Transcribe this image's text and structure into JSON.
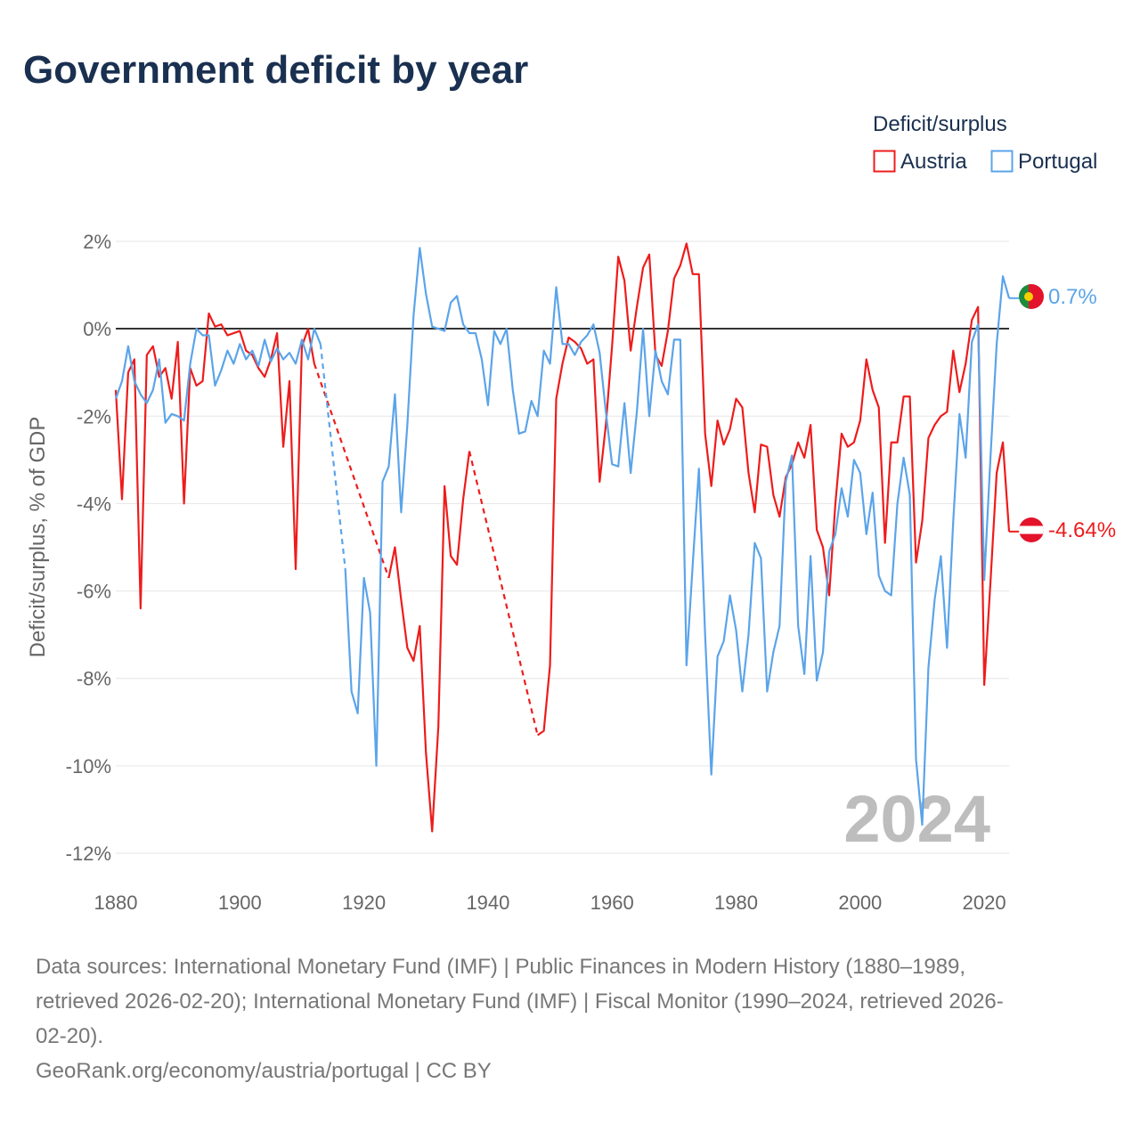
{
  "chart_data": {
    "type": "line",
    "title": "Government deficit by year",
    "ylabel": "Deficit/surplus, % of GDP",
    "xlabel": "",
    "xlim": [
      1880,
      2024
    ],
    "ylim": [
      -12,
      2
    ],
    "x_ticks": [
      1880,
      1900,
      1920,
      1940,
      1960,
      1980,
      2000,
      2020
    ],
    "x_tick_labels": [
      "1880",
      "1900",
      "1920",
      "1940",
      "1960",
      "1980",
      "2000",
      "2020"
    ],
    "y_ticks": [
      2,
      0,
      -2,
      -4,
      -6,
      -8,
      -10,
      -12
    ],
    "y_tick_labels": [
      "2%",
      "0%",
      "-2%",
      "-4%",
      "-6%",
      "-8%",
      "-10%",
      "-12%"
    ],
    "grid": true,
    "legend_title": "Deficit/surplus",
    "legend_position": "top-right",
    "year_watermark": "2024",
    "series": [
      {
        "name": "Austria",
        "color": "#ee1c1c",
        "end_label": "-4.64%",
        "points": [
          [
            1880,
            -1.4
          ],
          [
            1881,
            -3.9
          ],
          [
            1882,
            -1.0
          ],
          [
            1883,
            -0.7
          ],
          [
            1884,
            -6.4
          ],
          [
            1885,
            -0.6
          ],
          [
            1886,
            -0.4
          ],
          [
            1887,
            -1.1
          ],
          [
            1888,
            -0.9
          ],
          [
            1889,
            -1.6
          ],
          [
            1890,
            -0.3
          ],
          [
            1891,
            -4.0
          ],
          [
            1892,
            -0.9
          ],
          [
            1893,
            -1.3
          ],
          [
            1894,
            -1.2
          ],
          [
            1895,
            0.35
          ],
          [
            1896,
            0.05
          ],
          [
            1897,
            0.1
          ],
          [
            1898,
            -0.15
          ],
          [
            1899,
            -0.1
          ],
          [
            1900,
            -0.05
          ],
          [
            1901,
            -0.5
          ],
          [
            1902,
            -0.6
          ],
          [
            1903,
            -0.9
          ],
          [
            1904,
            -1.1
          ],
          [
            1905,
            -0.7
          ],
          [
            1906,
            -0.1
          ],
          [
            1907,
            -2.7
          ],
          [
            1908,
            -1.2
          ],
          [
            1909,
            -5.5
          ],
          [
            1910,
            -0.4
          ],
          [
            1911,
            0.0
          ],
          [
            1912,
            -0.8
          ],
          [
            1924,
            -5.7
          ],
          [
            1925,
            -5.0
          ],
          [
            1926,
            -6.2
          ],
          [
            1927,
            -7.3
          ],
          [
            1928,
            -7.6
          ],
          [
            1929,
            -6.8
          ],
          [
            1930,
            -9.7
          ],
          [
            1931,
            -11.5
          ],
          [
            1932,
            -9.1
          ],
          [
            1933,
            -3.6
          ],
          [
            1934,
            -5.2
          ],
          [
            1935,
            -5.4
          ],
          [
            1936,
            -3.9
          ],
          [
            1937,
            -2.8
          ],
          [
            1948,
            -9.3
          ],
          [
            1949,
            -9.2
          ],
          [
            1950,
            -7.7
          ],
          [
            1951,
            -1.6
          ],
          [
            1952,
            -0.8
          ],
          [
            1953,
            -0.2
          ],
          [
            1954,
            -0.3
          ],
          [
            1955,
            -0.45
          ],
          [
            1956,
            -0.8
          ],
          [
            1957,
            -0.7
          ],
          [
            1958,
            -3.5
          ],
          [
            1959,
            -2.2
          ],
          [
            1960,
            -0.4
          ],
          [
            1961,
            1.65
          ],
          [
            1962,
            1.1
          ],
          [
            1963,
            -0.5
          ],
          [
            1964,
            0.5
          ],
          [
            1965,
            1.4
          ],
          [
            1966,
            1.7
          ],
          [
            1967,
            -0.6
          ],
          [
            1968,
            -0.85
          ],
          [
            1969,
            -0.05
          ],
          [
            1970,
            1.15
          ],
          [
            1971,
            1.45
          ],
          [
            1972,
            1.95
          ],
          [
            1973,
            1.25
          ],
          [
            1974,
            1.25
          ],
          [
            1975,
            -2.4
          ],
          [
            1976,
            -3.6
          ],
          [
            1977,
            -2.1
          ],
          [
            1978,
            -2.65
          ],
          [
            1979,
            -2.3
          ],
          [
            1980,
            -1.6
          ],
          [
            1981,
            -1.8
          ],
          [
            1982,
            -3.3
          ],
          [
            1983,
            -4.2
          ],
          [
            1984,
            -2.65
          ],
          [
            1985,
            -2.7
          ],
          [
            1986,
            -3.8
          ],
          [
            1987,
            -4.3
          ],
          [
            1988,
            -3.4
          ],
          [
            1989,
            -3.1
          ],
          [
            1990,
            -2.6
          ],
          [
            1991,
            -2.95
          ],
          [
            1992,
            -2.2
          ],
          [
            1993,
            -4.6
          ],
          [
            1994,
            -5.0
          ],
          [
            1995,
            -6.1
          ],
          [
            1996,
            -4.0
          ],
          [
            1997,
            -2.4
          ],
          [
            1998,
            -2.7
          ],
          [
            1999,
            -2.6
          ],
          [
            2000,
            -2.1
          ],
          [
            2001,
            -0.7
          ],
          [
            2002,
            -1.4
          ],
          [
            2003,
            -1.8
          ],
          [
            2004,
            -4.9
          ],
          [
            2005,
            -2.6
          ],
          [
            2006,
            -2.6
          ],
          [
            2007,
            -1.55
          ],
          [
            2008,
            -1.55
          ],
          [
            2009,
            -5.35
          ],
          [
            2010,
            -4.4
          ],
          [
            2011,
            -2.5
          ],
          [
            2012,
            -2.2
          ],
          [
            2013,
            -2.0
          ],
          [
            2014,
            -1.9
          ],
          [
            2015,
            -0.5
          ],
          [
            2016,
            -1.45
          ],
          [
            2017,
            -0.8
          ],
          [
            2018,
            0.2
          ],
          [
            2019,
            0.5
          ],
          [
            2020,
            -8.15
          ],
          [
            2021,
            -5.8
          ],
          [
            2022,
            -3.3
          ],
          [
            2023,
            -2.6
          ],
          [
            2024,
            -4.64
          ]
        ]
      },
      {
        "name": "Portugal",
        "color": "#5ba4ea",
        "end_label": "0.7%",
        "points": [
          [
            1880,
            -1.6
          ],
          [
            1881,
            -1.2
          ],
          [
            1882,
            -0.4
          ],
          [
            1883,
            -1.2
          ],
          [
            1884,
            -1.5
          ],
          [
            1885,
            -1.7
          ],
          [
            1886,
            -1.4
          ],
          [
            1887,
            -0.7
          ],
          [
            1888,
            -2.15
          ],
          [
            1889,
            -1.95
          ],
          [
            1890,
            -2.0
          ],
          [
            1891,
            -2.1
          ],
          [
            1892,
            -0.8
          ],
          [
            1893,
            0.0
          ],
          [
            1894,
            -0.15
          ],
          [
            1895,
            -0.15
          ],
          [
            1896,
            -1.3
          ],
          [
            1897,
            -0.95
          ],
          [
            1898,
            -0.5
          ],
          [
            1899,
            -0.8
          ],
          [
            1900,
            -0.35
          ],
          [
            1901,
            -0.7
          ],
          [
            1902,
            -0.5
          ],
          [
            1903,
            -0.85
          ],
          [
            1904,
            -0.25
          ],
          [
            1905,
            -0.75
          ],
          [
            1906,
            -0.45
          ],
          [
            1907,
            -0.7
          ],
          [
            1908,
            -0.55
          ],
          [
            1909,
            -0.8
          ],
          [
            1910,
            -0.25
          ],
          [
            1911,
            -0.7
          ],
          [
            1912,
            0.0
          ],
          [
            1913,
            -0.35
          ],
          [
            1917,
            -5.5
          ],
          [
            1918,
            -8.3
          ],
          [
            1919,
            -8.8
          ],
          [
            1920,
            -5.7
          ],
          [
            1921,
            -6.5
          ],
          [
            1922,
            -10.0
          ],
          [
            1923,
            -3.5
          ],
          [
            1924,
            -3.15
          ],
          [
            1925,
            -1.5
          ],
          [
            1926,
            -4.2
          ],
          [
            1927,
            -2.2
          ],
          [
            1928,
            0.3
          ],
          [
            1929,
            1.85
          ],
          [
            1930,
            0.8
          ],
          [
            1931,
            0.05
          ],
          [
            1932,
            0.0
          ],
          [
            1933,
            -0.05
          ],
          [
            1934,
            0.6
          ],
          [
            1935,
            0.75
          ],
          [
            1936,
            0.1
          ],
          [
            1937,
            -0.1
          ],
          [
            1938,
            -0.1
          ],
          [
            1939,
            -0.7
          ],
          [
            1940,
            -1.75
          ],
          [
            1941,
            -0.05
          ],
          [
            1942,
            -0.35
          ],
          [
            1943,
            0.0
          ],
          [
            1944,
            -1.4
          ],
          [
            1945,
            -2.4
          ],
          [
            1946,
            -2.35
          ],
          [
            1947,
            -1.65
          ],
          [
            1948,
            -2.0
          ],
          [
            1949,
            -0.5
          ],
          [
            1950,
            -0.8
          ],
          [
            1951,
            0.95
          ],
          [
            1952,
            -0.35
          ],
          [
            1953,
            -0.35
          ],
          [
            1954,
            -0.6
          ],
          [
            1955,
            -0.3
          ],
          [
            1956,
            -0.15
          ],
          [
            1957,
            0.1
          ],
          [
            1958,
            -0.55
          ],
          [
            1959,
            -1.9
          ],
          [
            1960,
            -3.1
          ],
          [
            1961,
            -3.15
          ],
          [
            1962,
            -1.7
          ],
          [
            1963,
            -3.3
          ],
          [
            1964,
            -1.9
          ],
          [
            1965,
            0.0
          ],
          [
            1966,
            -2.0
          ],
          [
            1967,
            -0.5
          ],
          [
            1968,
            -1.2
          ],
          [
            1969,
            -1.5
          ],
          [
            1970,
            -0.25
          ],
          [
            1971,
            -0.25
          ],
          [
            1972,
            -7.7
          ],
          [
            1973,
            -5.4
          ],
          [
            1974,
            -3.2
          ],
          [
            1975,
            -7.0
          ],
          [
            1976,
            -10.2
          ],
          [
            1977,
            -7.5
          ],
          [
            1978,
            -7.15
          ],
          [
            1979,
            -6.1
          ],
          [
            1980,
            -6.9
          ],
          [
            1981,
            -8.3
          ],
          [
            1982,
            -7.0
          ],
          [
            1983,
            -4.9
          ],
          [
            1984,
            -5.25
          ],
          [
            1985,
            -8.3
          ],
          [
            1986,
            -7.4
          ],
          [
            1987,
            -6.8
          ],
          [
            1988,
            -3.5
          ],
          [
            1989,
            -2.9
          ],
          [
            1990,
            -6.8
          ],
          [
            1991,
            -7.9
          ],
          [
            1992,
            -5.2
          ],
          [
            1993,
            -8.05
          ],
          [
            1994,
            -7.4
          ],
          [
            1995,
            -5.1
          ],
          [
            1996,
            -4.7
          ],
          [
            1997,
            -3.65
          ],
          [
            1998,
            -4.3
          ],
          [
            1999,
            -3.0
          ],
          [
            2000,
            -3.3
          ],
          [
            2001,
            -4.7
          ],
          [
            2002,
            -3.75
          ],
          [
            2003,
            -5.65
          ],
          [
            2004,
            -6.0
          ],
          [
            2005,
            -6.1
          ],
          [
            2006,
            -4.0
          ],
          [
            2007,
            -2.95
          ],
          [
            2008,
            -3.8
          ],
          [
            2009,
            -9.85
          ],
          [
            2010,
            -11.35
          ],
          [
            2011,
            -7.75
          ],
          [
            2012,
            -6.2
          ],
          [
            2013,
            -5.2
          ],
          [
            2014,
            -7.3
          ],
          [
            2015,
            -4.4
          ],
          [
            2016,
            -1.95
          ],
          [
            2017,
            -2.95
          ],
          [
            2018,
            -0.3
          ],
          [
            2019,
            0.1
          ],
          [
            2020,
            -5.75
          ],
          [
            2021,
            -2.95
          ],
          [
            2022,
            -0.35
          ],
          [
            2023,
            1.2
          ],
          [
            2024,
            0.7
          ]
        ]
      }
    ]
  },
  "footer": {
    "lines": [
      "Data sources: International Monetary Fund (IMF) | Public Finances in Modern History (1880–1989,",
      "retrieved 2026-02-20); International Monetary Fund (IMF) | Fiscal Monitor (1990–2024, retrieved 2026-",
      "02-20)."
    ],
    "credit": "GeoRank.org/economy/austria/portugal | CC BY"
  }
}
